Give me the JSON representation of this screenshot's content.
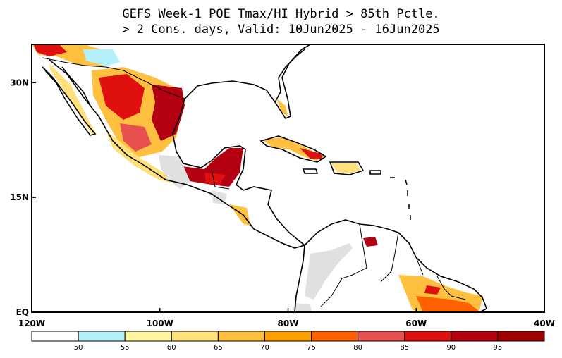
{
  "title_line1": "GEFS Week-1 POE Tmax/HI Hybrid > 85th Pctle.",
  "title_line2": "> 2 Cons. days, Valid: 10Jun2025 - 16Jun2025",
  "map": {
    "extent": {
      "lon_min": -120,
      "lon_max": -40,
      "lat_min": 0,
      "lat_max": 35
    },
    "x_ticks": [
      {
        "lon": -120,
        "label": "120W"
      },
      {
        "lon": -100,
        "label": "100W"
      },
      {
        "lon": -80,
        "label": "80W"
      },
      {
        "lon": -60,
        "label": "60W"
      },
      {
        "lon": -40,
        "label": "40W"
      }
    ],
    "y_ticks": [
      {
        "lat": 0,
        "label": "EQ"
      },
      {
        "lat": 15,
        "label": "15N"
      },
      {
        "lat": 30,
        "label": "30N"
      }
    ]
  },
  "colorbar": {
    "colors": [
      "#ffffff",
      "#b4f0fa",
      "#fff5a0",
      "#ffe07a",
      "#ffc040",
      "#ffa000",
      "#ff6000",
      "#e85050",
      "#e01010",
      "#b40010",
      "#a00000"
    ],
    "labels": [
      "50",
      "55",
      "60",
      "65",
      "70",
      "75",
      "80",
      "85",
      "90",
      "95"
    ]
  },
  "missing_color": "#e0e0e0"
}
